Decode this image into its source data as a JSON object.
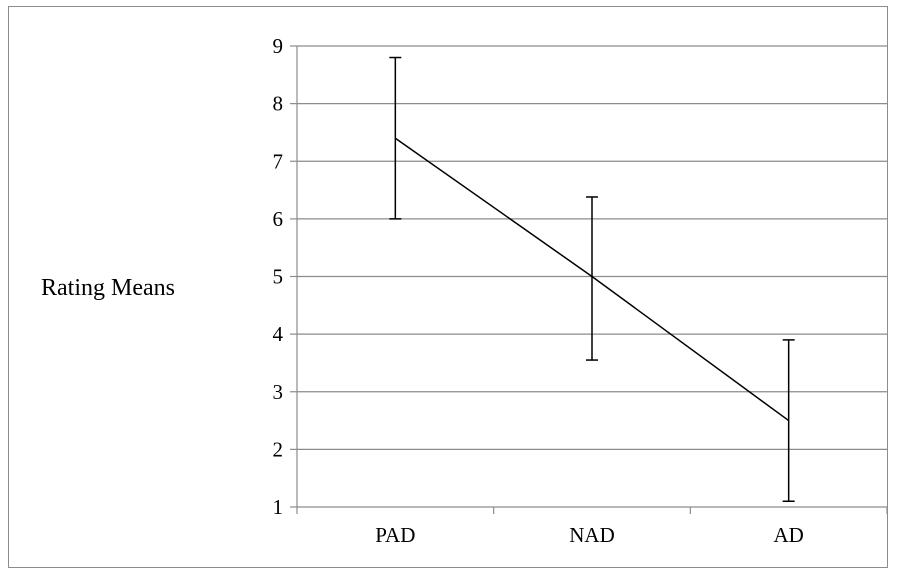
{
  "chart_data": {
    "type": "line",
    "title": "",
    "xlabel": "",
    "ylabel": "Rating Means",
    "categories": [
      "PAD",
      "NAD",
      "AD"
    ],
    "series": [
      {
        "values": [
          7.4,
          5.0,
          2.5
        ],
        "error_low": [
          6.0,
          3.55,
          1.1
        ],
        "error_high": [
          8.8,
          6.38,
          3.9
        ]
      }
    ],
    "ylim": [
      1,
      9
    ],
    "yticks": [
      "1",
      "2",
      "3",
      "4",
      "5",
      "6",
      "7",
      "8",
      "9"
    ],
    "grid": true,
    "legend": "none",
    "colors": {
      "line": "#000000",
      "grid": "#8c8c8c",
      "axis": "#8c8c8c",
      "frame": "#8c8c8c"
    }
  }
}
